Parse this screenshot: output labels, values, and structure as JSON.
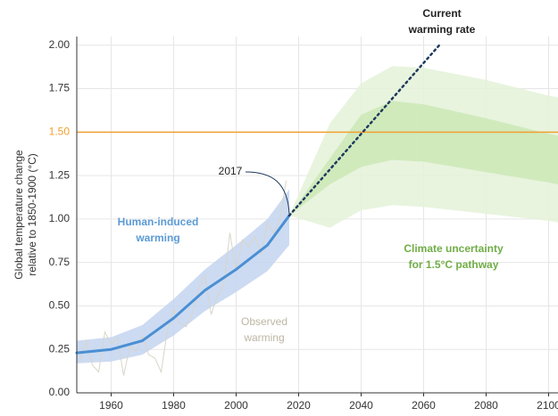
{
  "chart_data": {
    "type": "line",
    "ylabel": [
      "Global temperature change",
      "relative to 1850-1900 (°C)"
    ],
    "xlim": [
      1949,
      2103
    ],
    "ylim": [
      0,
      2.05
    ],
    "xticks": [
      1960,
      1980,
      2000,
      2020,
      2040,
      2060,
      2080,
      2100
    ],
    "yticks": [
      {
        "value": 0,
        "label": "0.00"
      },
      0.25,
      {
        "value": 0.5,
        "label": "0.50"
      },
      0.75,
      {
        "value": 1,
        "label": "1.00"
      },
      1.25,
      {
        "value": 1.5,
        "label": "1.50"
      },
      1.75,
      {
        "value": 2,
        "label": "2.00"
      }
    ],
    "grid": true,
    "reference_line": {
      "value": 1.5,
      "color": "#f0a030"
    },
    "bands": [
      {
        "color": "#e4f2d8",
        "x": [
          2017,
          2030,
          2040,
          2050,
          2060,
          2080,
          2100,
          2103
        ],
        "upper": [
          1.02,
          1.55,
          1.78,
          1.88,
          1.87,
          1.8,
          1.71,
          1.7
        ],
        "lower": [
          1.02,
          0.95,
          1.05,
          1.08,
          1.07,
          1.03,
          0.99,
          0.98
        ]
      },
      {
        "color": "#cbe7b6",
        "x": [
          2017,
          2030,
          2040,
          2050,
          2060,
          2080,
          2100,
          2103
        ],
        "upper": [
          1.02,
          1.35,
          1.6,
          1.68,
          1.66,
          1.58,
          1.49,
          1.48
        ],
        "lower": [
          1.02,
          1.2,
          1.3,
          1.34,
          1.33,
          1.27,
          1.21,
          1.2
        ]
      },
      {
        "color": "#c3d5f0",
        "x": [
          1949,
          1960,
          1970,
          1980,
          1990,
          2000,
          2010,
          2017
        ],
        "upper": [
          0.3,
          0.32,
          0.39,
          0.54,
          0.71,
          0.85,
          1.0,
          1.17
        ],
        "lower": [
          0.17,
          0.18,
          0.22,
          0.33,
          0.47,
          0.58,
          0.7,
          0.85
        ]
      }
    ],
    "series": [
      {
        "color": "#d9d5c8",
        "width": 1,
        "x": [
          1950,
          1952,
          1954,
          1956,
          1958,
          1960,
          1962,
          1964,
          1966,
          1968,
          1970,
          1972,
          1974,
          1976,
          1978,
          1980,
          1982,
          1984,
          1986,
          1988,
          1990,
          1992,
          1994,
          1996,
          1998,
          2000,
          2002,
          2004,
          2006,
          2008,
          2010,
          2012,
          2014,
          2016
        ],
        "values": [
          0.18,
          0.3,
          0.16,
          0.12,
          0.35,
          0.28,
          0.32,
          0.1,
          0.27,
          0.24,
          0.33,
          0.22,
          0.2,
          0.12,
          0.36,
          0.48,
          0.4,
          0.38,
          0.46,
          0.6,
          0.68,
          0.45,
          0.56,
          0.62,
          0.92,
          0.7,
          0.88,
          0.84,
          0.9,
          0.8,
          0.98,
          0.92,
          1.0,
          1.22
        ]
      },
      {
        "color": "#4a8fd4",
        "width": 3,
        "x": [
          1949,
          1960,
          1970,
          1980,
          1990,
          2000,
          2010,
          2017
        ],
        "values": [
          0.23,
          0.25,
          0.3,
          0.43,
          0.59,
          0.71,
          0.85,
          1.02
        ]
      },
      {
        "color": "#1f3a5f",
        "width": 2.5,
        "dash": "2 4",
        "x": [
          2017,
          2065
        ],
        "values": [
          1.02,
          2.0
        ]
      }
    ],
    "annotations": [
      {
        "lines": [
          "Current",
          "warming rate"
        ],
        "color": "#222",
        "bold": true
      },
      {
        "lines": [
          "2017"
        ],
        "color": "#222",
        "bold": false
      },
      {
        "lines": [
          "Human-induced",
          "warming"
        ],
        "color": "#5b9bd5",
        "bold": true
      },
      {
        "lines": [
          "Observed",
          "warming"
        ],
        "color": "#bdb6a3",
        "bold": false
      },
      {
        "lines": [
          "Climate uncertainty",
          "for 1.5°C pathway"
        ],
        "color": "#70ad47",
        "bold": true
      }
    ]
  }
}
